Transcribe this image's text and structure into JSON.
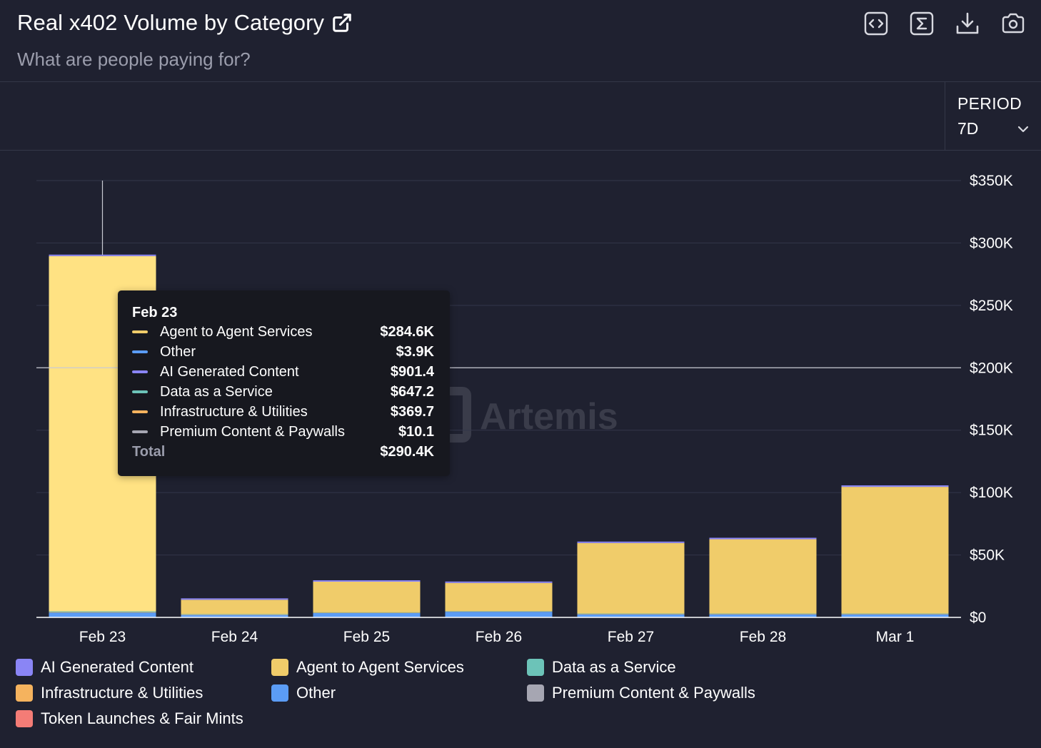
{
  "header": {
    "title": "Real x402 Volume by Category",
    "subtitle": "What are people paying for?",
    "toolbar": [
      {
        "name": "embed-button",
        "icon": "code-icon"
      },
      {
        "name": "formula-button",
        "icon": "sigma-icon"
      },
      {
        "name": "download-button",
        "icon": "download-icon"
      },
      {
        "name": "screenshot-button",
        "icon": "camera-icon"
      }
    ]
  },
  "controls": {
    "period_label": "PERIOD",
    "period_value": "7D"
  },
  "watermark": "Artemis",
  "colors": {
    "agent": "#f0cc6a",
    "agent_highlight": "#ffe283",
    "other": "#5b9cf5",
    "ai": "#8a85f5",
    "data": "#6cc3b8",
    "infra": "#f5b35e",
    "premium": "#a6a6b2",
    "token": "#f47c76",
    "background": "#1f2130"
  },
  "chart_data": {
    "type": "bar",
    "stacked": true,
    "title": "Real x402 Volume by Category",
    "categories": [
      "Feb 23",
      "Feb 24",
      "Feb 25",
      "Feb 26",
      "Feb 27",
      "Feb 28",
      "Mar 1"
    ],
    "ylim": [
      0,
      350000
    ],
    "yticks": [
      {
        "value": 0,
        "label": "$0"
      },
      {
        "value": 50000,
        "label": "$50K"
      },
      {
        "value": 100000,
        "label": "$100K"
      },
      {
        "value": 150000,
        "label": "$150K"
      },
      {
        "value": 200000,
        "label": "$200K"
      },
      {
        "value": 250000,
        "label": "$250K"
      },
      {
        "value": 300000,
        "label": "$300K"
      },
      {
        "value": 350000,
        "label": "$350K"
      }
    ],
    "series": [
      {
        "name": "Other",
        "color": "#5b9cf5",
        "values": [
          3900,
          2000,
          3500,
          4500,
          2500,
          2500,
          2500
        ]
      },
      {
        "name": "Infrastructure & Utilities",
        "color": "#f5b35e",
        "values": [
          369.7,
          300,
          300,
          300,
          300,
          300,
          300
        ]
      },
      {
        "name": "Data as a Service",
        "color": "#6cc3b8",
        "values": [
          647.2,
          300,
          300,
          300,
          300,
          300,
          300
        ]
      },
      {
        "name": "Premium Content & Paywalls",
        "color": "#a6a6b2",
        "values": [
          10.1,
          0,
          0,
          0,
          0,
          0,
          0
        ]
      },
      {
        "name": "Agent to Agent Services",
        "color": "#f0cc6a",
        "values": [
          284600,
          11500,
          24500,
          22500,
          56500,
          59500,
          101500
        ]
      },
      {
        "name": "AI Generated Content",
        "color": "#8a85f5",
        "values": [
          901.4,
          900,
          600,
          800,
          1000,
          1200,
          1200
        ]
      },
      {
        "name": "Token Launches & Fair Mints",
        "color": "#f47c76",
        "values": [
          0,
          0,
          0,
          0,
          0,
          0,
          0
        ]
      }
    ],
    "highlighted_category": "Feb 23",
    "crosshair_value": 200000,
    "legend_position": "bottom"
  },
  "tooltip": {
    "date": "Feb 23",
    "rows": [
      {
        "name": "Agent to Agent Services",
        "value": "$284.6K",
        "color": "#f0cc6a"
      },
      {
        "name": "Other",
        "value": "$3.9K",
        "color": "#5b9cf5"
      },
      {
        "name": "AI Generated Content",
        "value": "$901.4",
        "color": "#8a85f5"
      },
      {
        "name": "Data as a Service",
        "value": "$647.2",
        "color": "#6cc3b8"
      },
      {
        "name": "Infrastructure & Utilities",
        "value": "$369.7",
        "color": "#f5b35e"
      },
      {
        "name": "Premium Content & Paywalls",
        "value": "$10.1",
        "color": "#a6a6b2"
      }
    ],
    "total_label": "Total",
    "total_value": "$290.4K"
  },
  "legend": [
    {
      "name": "AI Generated Content",
      "color": "#8a85f5"
    },
    {
      "name": "Agent to Agent Services",
      "color": "#f0cc6a"
    },
    {
      "name": "Data as a Service",
      "color": "#6cc3b8"
    },
    {
      "name": "Infrastructure & Utilities",
      "color": "#f5b35e"
    },
    {
      "name": "Other",
      "color": "#5b9cf5"
    },
    {
      "name": "Premium Content & Paywalls",
      "color": "#a6a6b2"
    },
    {
      "name": "Token Launches & Fair Mints",
      "color": "#f47c76"
    }
  ]
}
